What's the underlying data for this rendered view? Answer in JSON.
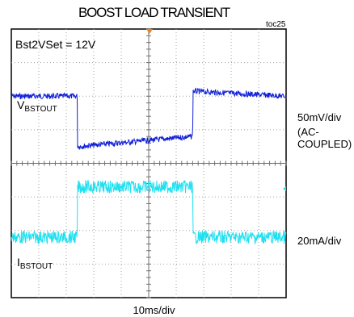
{
  "chart_data": {
    "type": "line",
    "title": "BOOST LOAD TRANSIENT",
    "figure_id": "toc25",
    "setting_label": "Bst2VSet = 12V",
    "xlabel": "10ms/div",
    "colors": {
      "channel1": "#1020d8",
      "channel2": "#20e0f0",
      "grid": "#a0a0a0",
      "trigger_marker": "#f08020"
    },
    "divisions": {
      "x": 10,
      "y": 8
    },
    "series": [
      {
        "name_main": "V",
        "name_sub": "BSTOUT",
        "scale": "50mV/div",
        "coupling": "(AC-COUPLED)",
        "units": "divisions",
        "x": [
          0,
          2.4,
          2.41,
          6.6,
          6.61,
          10
        ],
        "y": [
          6.0,
          6.0,
          4.5,
          4.8,
          6.15,
          6.0
        ]
      },
      {
        "name_main": "I",
        "name_sub": "BSTOUT",
        "scale": "20mA/div",
        "units": "divisions",
        "x": [
          0,
          2.4,
          2.41,
          6.6,
          6.61,
          10
        ],
        "y": [
          1.8,
          1.8,
          3.3,
          3.3,
          1.8,
          1.8
        ]
      }
    ]
  }
}
